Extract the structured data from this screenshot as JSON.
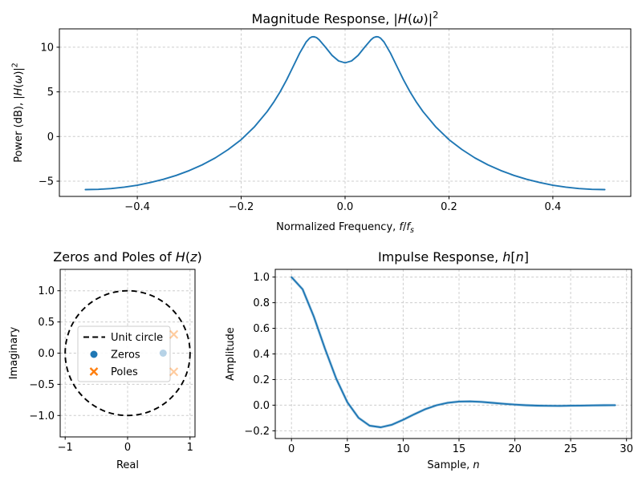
{
  "figure": {
    "background": "#ffffff",
    "text_color": "#000000",
    "grid_color": "#cccccc",
    "accent_blue": "#1f77b4",
    "accent_orange": "#ff7f0e"
  },
  "chart_data": [
    {
      "type": "line",
      "title": "Magnitude Response, |H(ω)|²",
      "title_rich": [
        {
          "t": "Magnitude Response, |"
        },
        {
          "t": "H",
          "i": 1
        },
        {
          "t": "("
        },
        {
          "t": "ω",
          "i": 1
        },
        {
          "t": ")|"
        },
        {
          "t": "2",
          "sup": 1
        }
      ],
      "xlabel": "Normalized Frequency, f/fs",
      "xlabel_rich": [
        {
          "t": "Normalized Frequency, "
        },
        {
          "t": "f",
          "i": 1
        },
        {
          "t": "/"
        },
        {
          "t": "f",
          "i": 1
        },
        {
          "t": "s",
          "i": 1,
          "sub": 1
        }
      ],
      "ylabel": "Power (dB), |H(ω)|²",
      "ylabel_rich": [
        {
          "t": "Power (dB), |"
        },
        {
          "t": "H",
          "i": 1
        },
        {
          "t": "("
        },
        {
          "t": "ω",
          "i": 1
        },
        {
          "t": ")|"
        },
        {
          "t": "2",
          "sup": 1
        }
      ],
      "xlim": [
        -0.55,
        0.55
      ],
      "ylim": [
        -6.71,
        12.06
      ],
      "grid": true,
      "line_color": "#1f77b4",
      "xticks": {
        "values": [
          -0.4,
          -0.2,
          0.0,
          0.2,
          0.4
        ],
        "labels": [
          "−0.4",
          "−0.2",
          "0.0",
          "0.2",
          "0.4"
        ]
      },
      "yticks": {
        "values": [
          -5,
          0,
          5,
          10
        ],
        "labels": [
          "−5",
          "0",
          "5",
          "10"
        ]
      },
      "series": [
        {
          "name": "power_dB",
          "x": [
            -0.5,
            -0.475,
            -0.45,
            -0.425,
            -0.4,
            -0.375,
            -0.35,
            -0.325,
            -0.3,
            -0.275,
            -0.25,
            -0.225,
            -0.2,
            -0.175,
            -0.15,
            -0.1375,
            -0.125,
            -0.1125,
            -0.1,
            -0.0875,
            -0.075,
            -0.068,
            -0.0637,
            -0.06,
            -0.055,
            -0.05,
            -0.0375,
            -0.025,
            -0.0125,
            0,
            0.0125,
            0.025,
            0.0375,
            0.05,
            0.055,
            0.06,
            0.0637,
            0.068,
            0.075,
            0.0875,
            0.1,
            0.1125,
            0.125,
            0.1375,
            0.15,
            0.175,
            0.2,
            0.225,
            0.25,
            0.275,
            0.3,
            0.325,
            0.35,
            0.375,
            0.4,
            0.425,
            0.45,
            0.475,
            0.5
          ],
          "y": [
            -5.95,
            -5.92,
            -5.83,
            -5.67,
            -5.46,
            -5.16,
            -4.8,
            -4.36,
            -3.82,
            -3.17,
            -2.4,
            -1.46,
            -0.35,
            1.05,
            2.79,
            3.83,
            5.01,
            6.35,
            7.84,
            9.34,
            10.6,
            11.04,
            11.17,
            11.18,
            11.08,
            10.85,
            9.99,
            9.09,
            8.47,
            8.25,
            8.47,
            9.09,
            9.99,
            10.85,
            11.08,
            11.18,
            11.17,
            11.04,
            10.6,
            9.34,
            7.84,
            6.35,
            5.01,
            3.83,
            2.79,
            1.05,
            -0.35,
            -1.46,
            -2.4,
            -3.17,
            -3.82,
            -4.36,
            -4.8,
            -5.16,
            -5.46,
            -5.67,
            -5.83,
            -5.92,
            -5.95
          ]
        }
      ]
    },
    {
      "type": "scatter",
      "title": "Zeros and Poles of H(z)",
      "title_rich": [
        {
          "t": "Zeros and Poles of "
        },
        {
          "t": "H",
          "i": 1
        },
        {
          "t": "("
        },
        {
          "t": "z",
          "i": 1
        },
        {
          "t": ")"
        }
      ],
      "xlabel": "Real",
      "ylabel": "Imaginary",
      "xlim": [
        -1.08,
        1.08
      ],
      "ylim": [
        -1.343,
        1.343
      ],
      "grid": true,
      "xticks": {
        "values": [
          -1,
          0,
          1
        ],
        "labels": [
          "−1",
          "0",
          "1"
        ]
      },
      "yticks": {
        "values": [
          -1.0,
          -0.5,
          0.0,
          0.5,
          1.0
        ],
        "labels": [
          "−1.0",
          "−0.5",
          "0.0",
          "0.5",
          "1.0"
        ]
      },
      "unit_circle": {
        "label": "Unit circle",
        "radius": 1.0,
        "color": "#000000",
        "style": "dashed"
      },
      "zero_color": "#1f77b4",
      "pole_color": "#ff7f0e",
      "zeros": [
        [
          0.57,
          0.0
        ]
      ],
      "poles": [
        [
          0.74,
          0.3
        ],
        [
          0.74,
          -0.3
        ]
      ],
      "legend": {
        "position": "center left",
        "items": [
          {
            "label": "Unit circle",
            "marker": "dashed-line",
            "color": "#000000"
          },
          {
            "label": "Zeros",
            "marker": "circle",
            "color": "#1f77b4"
          },
          {
            "label": "Poles",
            "marker": "x",
            "color": "#ff7f0e"
          }
        ]
      }
    },
    {
      "type": "line",
      "title": "Impulse Response, h[n]",
      "title_rich": [
        {
          "t": "Impulse Response, "
        },
        {
          "t": "h",
          "i": 1
        },
        {
          "t": "["
        },
        {
          "t": "n",
          "i": 1
        },
        {
          "t": "]"
        }
      ],
      "xlabel": "Sample, n",
      "xlabel_rich": [
        {
          "t": "Sample, "
        },
        {
          "t": "n",
          "i": 1
        }
      ],
      "ylabel": "Amplitude",
      "xlim": [
        -1.45,
        30.45
      ],
      "ylim": [
        -0.26,
        1.06
      ],
      "grid": true,
      "line_color": "#1f77b4",
      "xticks": {
        "values": [
          0,
          5,
          10,
          15,
          20,
          25,
          30
        ],
        "labels": [
          "0",
          "5",
          "10",
          "15",
          "20",
          "25",
          "30"
        ]
      },
      "yticks": {
        "values": [
          -0.2,
          0.0,
          0.2,
          0.4,
          0.6,
          0.8,
          1.0
        ],
        "labels": [
          "−0.2",
          "0.0",
          "0.2",
          "0.4",
          "0.6",
          "0.8",
          "1.0"
        ]
      },
      "series": [
        {
          "name": "h[n]",
          "x": [
            0,
            1,
            2,
            3,
            4,
            5,
            6,
            7,
            8,
            9,
            10,
            11,
            12,
            13,
            14,
            15,
            16,
            17,
            18,
            19,
            20,
            21,
            22,
            23,
            24,
            25,
            26,
            27,
            28,
            29
          ],
          "y": [
            1.0,
            0.9041,
            0.6924,
            0.4418,
            0.2079,
            0.0236,
            -0.0982,
            -0.1599,
            -0.1727,
            -0.1523,
            -0.1138,
            -0.0703,
            -0.0307,
            -0.0003,
            0.0192,
            0.0285,
            0.0297,
            0.0256,
            0.0186,
            0.0111,
            0.0045,
            -0.0006,
            -0.0037,
            -0.005,
            -0.0051,
            -0.0043,
            -0.0031,
            -0.0018,
            -0.0006,
            0.0002
          ]
        }
      ]
    }
  ]
}
